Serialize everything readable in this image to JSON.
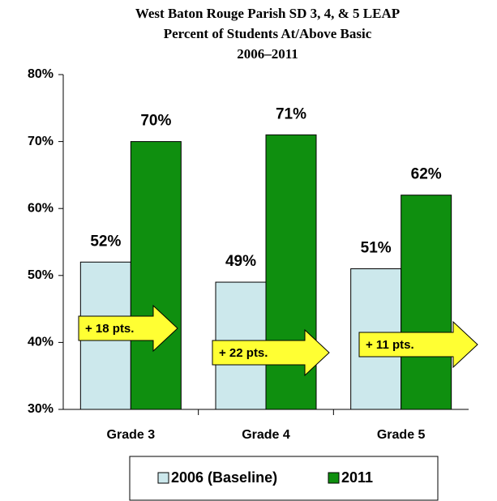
{
  "chart_data": {
    "type": "bar",
    "title": [
      "West Baton Rouge Parish SD 3, 4, & 5 LEAP",
      "Percent of Students At/Above Basic",
      "2006–2011"
    ],
    "categories": [
      "Grade 3",
      "Grade 4",
      "Grade 5"
    ],
    "series": [
      {
        "name": "2006 (Baseline)",
        "color": "#cce8ec",
        "values": [
          52,
          49,
          51
        ],
        "value_labels": [
          "52%",
          "49%",
          "51%"
        ]
      },
      {
        "name": "2011",
        "color": "#0f8f0f",
        "values": [
          70,
          71,
          62
        ],
        "value_labels": [
          "70%",
          "71%",
          "62%"
        ]
      }
    ],
    "annotations": [
      "+ 18 pts.",
      "+ 22 pts.",
      "+ 11 pts."
    ],
    "ylim": [
      30,
      80
    ],
    "yticks": [
      {
        "value": 30,
        "label": "30%"
      },
      {
        "value": 40,
        "label": "40%"
      },
      {
        "value": 50,
        "label": "50%"
      },
      {
        "value": 60,
        "label": "60%"
      },
      {
        "value": 70,
        "label": "70%"
      },
      {
        "value": 80,
        "label": "80%"
      }
    ],
    "legend": "bottom"
  }
}
